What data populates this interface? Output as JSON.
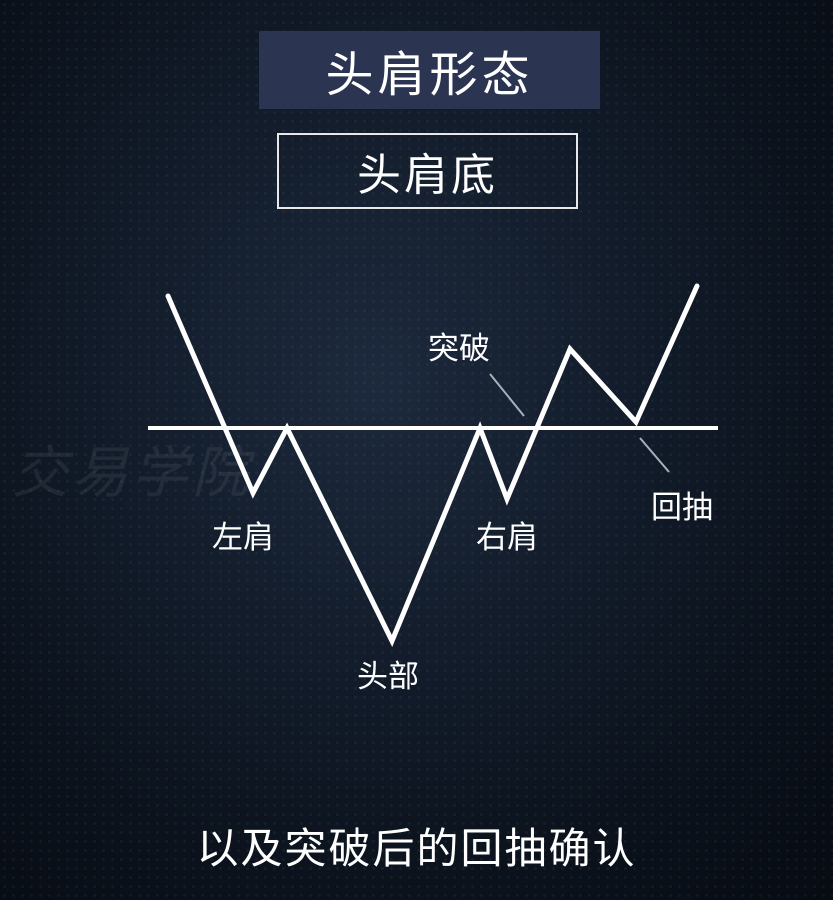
{
  "title": "头肩形态",
  "subtitle": "头肩底",
  "watermark": "交易学院",
  "labels": {
    "left_shoulder": "左肩",
    "head": "头部",
    "right_shoulder": "右肩",
    "breakout": "突破",
    "pullback": "回抽"
  },
  "caption": "以及突破后的回抽确认",
  "colors": {
    "background": "#0e1724",
    "title_bg": "#2b3552",
    "line": "#ffffff",
    "pointer": "#a9b0bb"
  }
}
